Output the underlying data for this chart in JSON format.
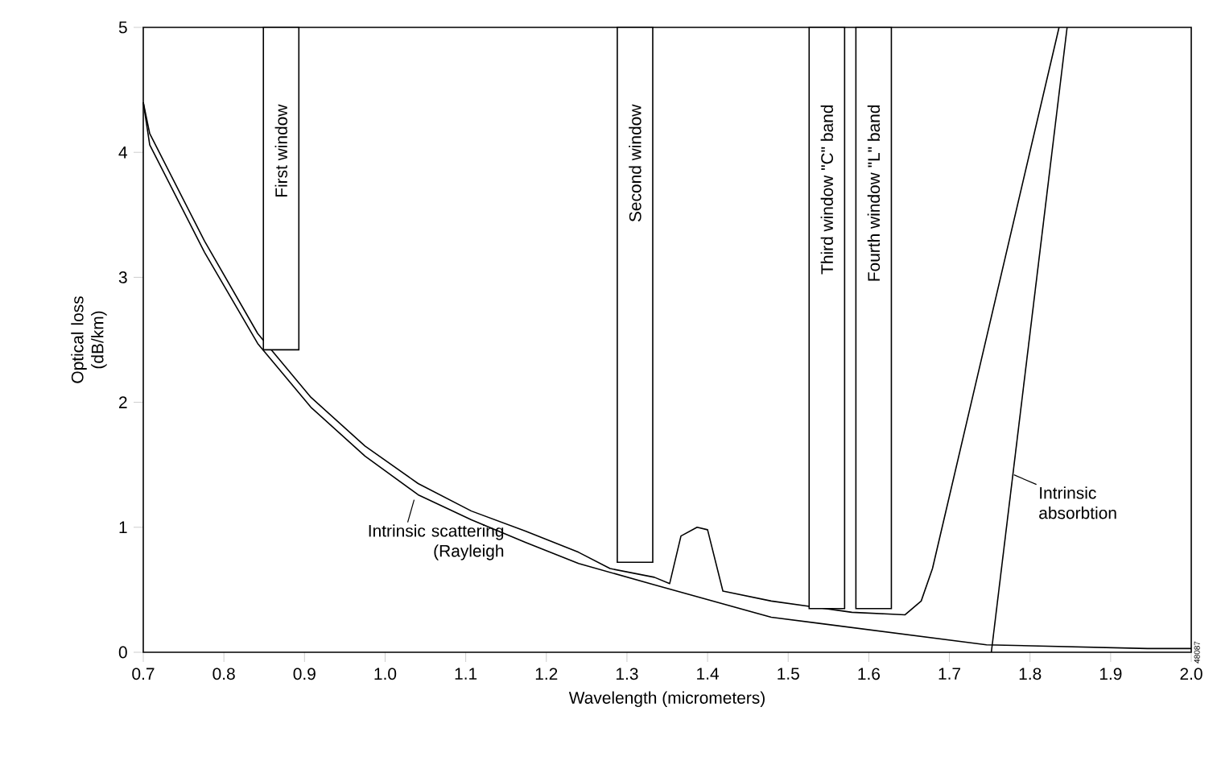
{
  "chart_data": {
    "type": "line",
    "xlabel": "Wavelength (micrometers)",
    "ylabel": "Optical loss (dB/km)",
    "xlim": [
      0.7,
      2.0
    ],
    "ylim": [
      0,
      5
    ],
    "xticks": [
      0.7,
      0.8,
      0.9,
      {
        "value": 1.0,
        "label": "1.0"
      },
      1.1,
      1.2,
      1.3,
      1.4,
      1.5,
      1.6,
      1.7,
      1.8,
      1.9,
      {
        "value": 2.0,
        "label": "2.0"
      }
    ],
    "yticks": [
      0,
      1,
      2,
      3,
      4,
      5
    ],
    "grid": false,
    "marker": "none",
    "line_style": "solid",
    "series": [
      {
        "color": "#000000",
        "x": [
          0.7,
          0.708,
          0.776,
          0.842,
          0.908,
          0.975,
          1.041,
          1.107,
          1.174,
          1.24,
          1.279,
          1.334,
          1.353,
          1.367,
          1.387,
          1.4,
          1.419,
          1.479,
          1.579,
          1.645,
          1.665,
          1.679,
          1.836
        ],
        "values": [
          4.4,
          4.15,
          3.29,
          2.55,
          2.04,
          1.65,
          1.35,
          1.13,
          0.97,
          0.8,
          0.67,
          0.6,
          0.55,
          0.93,
          1.0,
          0.98,
          0.49,
          0.41,
          0.32,
          0.3,
          0.41,
          0.67,
          5.0
        ]
      },
      {
        "color": "#000000",
        "x": [
          0.7,
          0.708,
          0.776,
          0.842,
          0.908,
          0.975,
          1.041,
          1.107,
          1.174,
          1.24,
          1.334,
          1.479,
          1.746,
          1.946,
          2.0
        ],
        "values": [
          4.4,
          4.06,
          3.2,
          2.47,
          1.96,
          1.57,
          1.26,
          1.06,
          0.88,
          0.71,
          0.54,
          0.28,
          0.06,
          0.03,
          0.03
        ]
      },
      {
        "color": "#000000",
        "x": [
          1.752,
          1.846
        ],
        "values": [
          0,
          5
        ]
      },
      {
        "type": "bar",
        "color": "#ffffff",
        "x": [
          0.871,
          1.31,
          1.548,
          1.606
        ],
        "base": [
          2.42,
          0.72,
          0.35,
          0.35
        ],
        "values": [
          2.58,
          4.28,
          4.65,
          4.65
        ]
      }
    ],
    "annotations": [
      "First window",
      "Second window",
      "Third window \"C\" band",
      "Fourth window \"L\" band",
      {
        "text": "Intrinsic scattering (Rayleigh",
        "x": 1.036,
        "y": 1.22
      },
      {
        "text": "Intrinsic absorbtion",
        "x": 1.78,
        "y": 1.42
      },
      "48087"
    ]
  }
}
